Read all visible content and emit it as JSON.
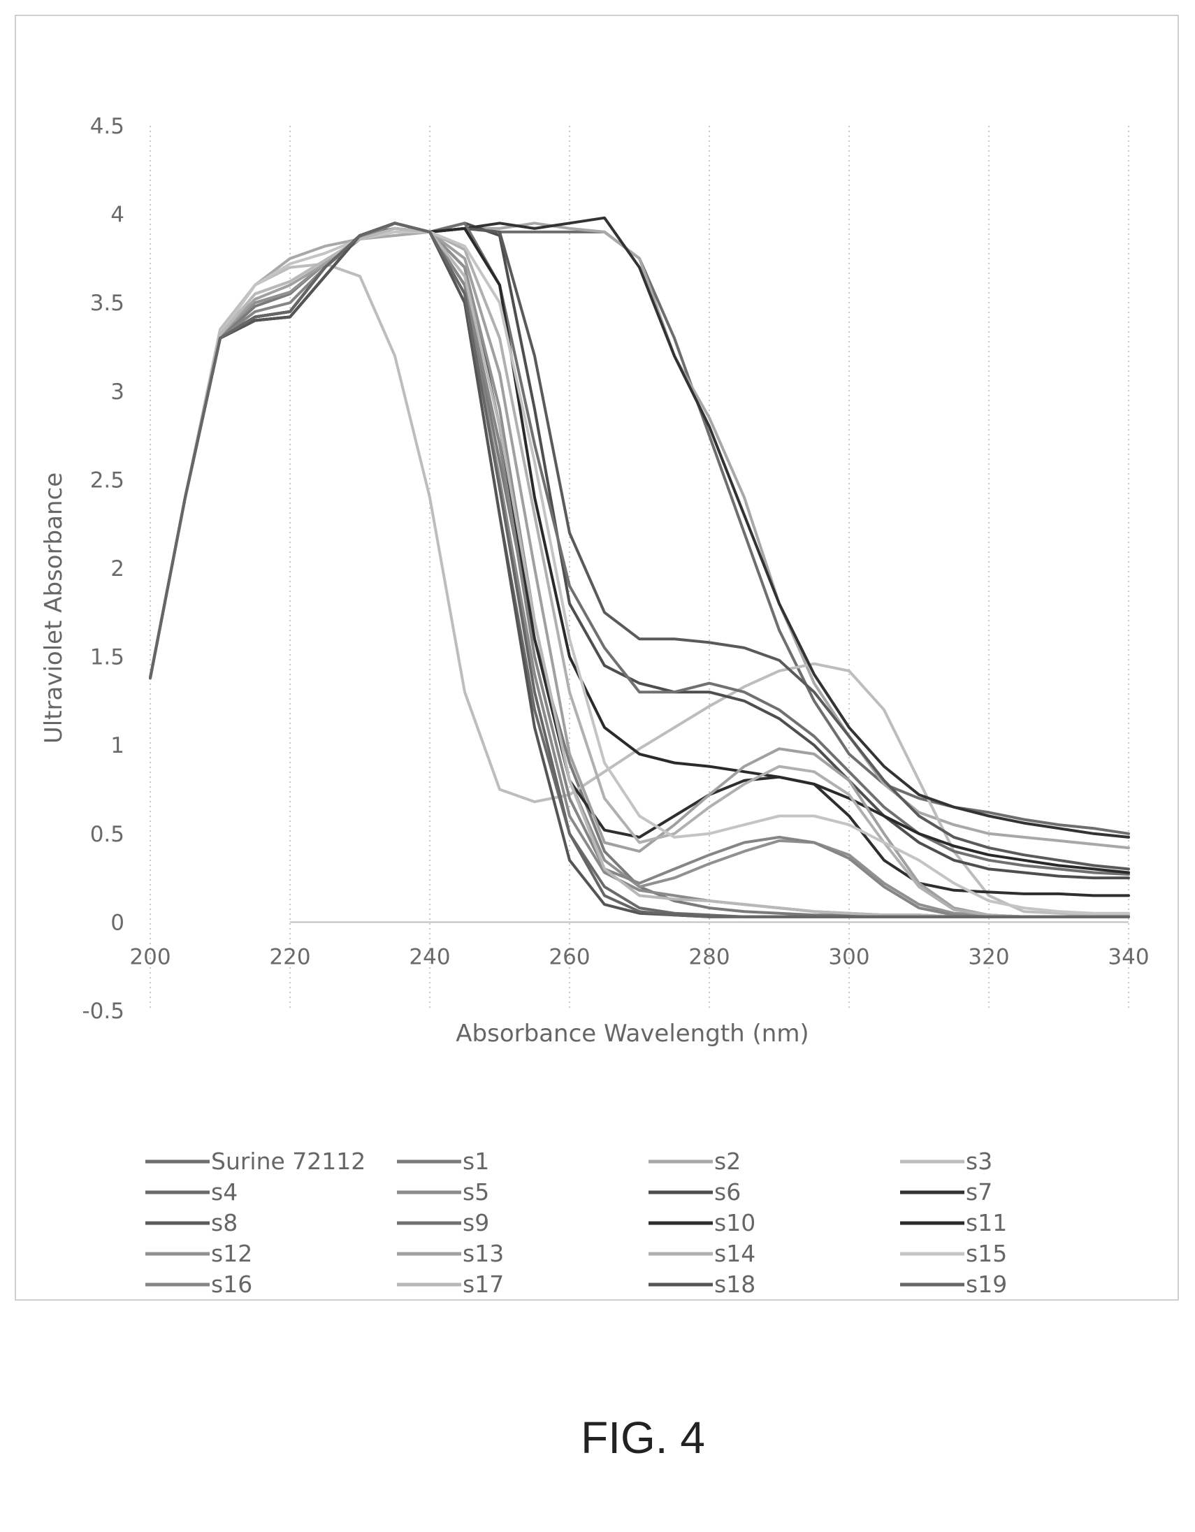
{
  "figure_label": "FIG. 4",
  "chart_data": {
    "type": "line",
    "title": "",
    "xlabel": "Absorbance Wavelength (nm)",
    "ylabel": "Ultraviolet Absorbance",
    "xlim": [
      200,
      340
    ],
    "ylim": [
      -0.5,
      4.5
    ],
    "xticks": [
      "200",
      "220",
      "240",
      "260",
      "280",
      "300",
      "320",
      "340"
    ],
    "yticks": [
      "4.5",
      "4",
      "3.5",
      "3",
      "2.5",
      "2",
      "1.5",
      "1",
      "0.5",
      "0",
      "-0.5"
    ],
    "grid": "vertical-dotted",
    "legend_position": "bottom",
    "x": [
      200,
      205,
      210,
      215,
      220,
      225,
      230,
      235,
      240,
      245,
      250,
      255,
      260,
      265,
      270,
      275,
      280,
      285,
      290,
      295,
      300,
      305,
      310,
      315,
      320,
      325,
      330,
      335,
      340
    ],
    "series": [
      {
        "name": "Surine 72112",
        "color": "#6e6e6e",
        "values": [
          1.38,
          2.4,
          3.3,
          3.42,
          3.45,
          3.7,
          3.88,
          3.92,
          3.9,
          3.92,
          3.9,
          3.9,
          3.9,
          3.9,
          3.75,
          3.3,
          2.75,
          2.2,
          1.65,
          1.25,
          0.95,
          0.78,
          0.7,
          0.65,
          0.62,
          0.58,
          0.55,
          0.53,
          0.5
        ]
      },
      {
        "name": "s1",
        "color": "#7a7a7a",
        "values": [
          1.38,
          2.4,
          3.3,
          3.48,
          3.55,
          3.72,
          3.86,
          3.95,
          3.9,
          3.6,
          2.6,
          1.6,
          0.9,
          0.4,
          0.2,
          0.12,
          0.08,
          0.06,
          0.05,
          0.04,
          0.04,
          0.04,
          0.04,
          0.03,
          0.03,
          0.03,
          0.03,
          0.03,
          0.03
        ]
      },
      {
        "name": "s2",
        "color": "#a8a8a8",
        "values": [
          1.38,
          2.4,
          3.32,
          3.6,
          3.75,
          3.82,
          3.86,
          3.88,
          3.9,
          3.92,
          3.92,
          3.95,
          3.92,
          3.9,
          3.75,
          3.2,
          2.85,
          2.4,
          1.8,
          1.35,
          1.05,
          0.78,
          0.62,
          0.55,
          0.5,
          0.48,
          0.46,
          0.44,
          0.42
        ]
      },
      {
        "name": "s3",
        "color": "#bdbdbd",
        "values": [
          1.38,
          2.4,
          3.35,
          3.6,
          3.7,
          3.72,
          3.65,
          3.2,
          2.4,
          1.3,
          0.75,
          0.68,
          0.72,
          0.85,
          0.98,
          1.1,
          1.22,
          1.33,
          1.42,
          1.46,
          1.42,
          1.2,
          0.8,
          0.4,
          0.15,
          0.06,
          0.05,
          0.04,
          0.04
        ]
      },
      {
        "name": "s4",
        "color": "#6a6a6a",
        "values": [
          1.38,
          2.4,
          3.3,
          3.4,
          3.42,
          3.65,
          3.88,
          3.95,
          3.9,
          3.5,
          2.3,
          1.2,
          0.5,
          0.2,
          0.08,
          0.05,
          0.04,
          0.03,
          0.03,
          0.03,
          0.03,
          0.03,
          0.03,
          0.03,
          0.03,
          0.03,
          0.03,
          0.03,
          0.03
        ]
      },
      {
        "name": "s5",
        "color": "#8a8a8a",
        "values": [
          1.38,
          2.4,
          3.32,
          3.5,
          3.56,
          3.72,
          3.86,
          3.95,
          3.9,
          3.55,
          2.5,
          1.4,
          0.6,
          0.28,
          0.18,
          0.15,
          0.12,
          0.1,
          0.08,
          0.06,
          0.05,
          0.04,
          0.04,
          0.03,
          0.03,
          0.03,
          0.03,
          0.03,
          0.03
        ]
      },
      {
        "name": "s6",
        "color": "#4e4e4e",
        "values": [
          1.38,
          2.4,
          3.3,
          3.4,
          3.42,
          3.65,
          3.88,
          3.95,
          3.9,
          3.95,
          3.88,
          2.9,
          1.8,
          1.45,
          1.35,
          1.3,
          1.3,
          1.25,
          1.15,
          1.0,
          0.8,
          0.6,
          0.45,
          0.35,
          0.3,
          0.28,
          0.26,
          0.25,
          0.25
        ]
      },
      {
        "name": "s7",
        "color": "#333333",
        "values": [
          1.38,
          2.4,
          3.3,
          3.42,
          3.45,
          3.7,
          3.88,
          3.92,
          3.9,
          3.92,
          3.95,
          3.92,
          3.95,
          3.98,
          3.7,
          3.2,
          2.8,
          2.3,
          1.8,
          1.4,
          1.1,
          0.88,
          0.72,
          0.65,
          0.6,
          0.56,
          0.53,
          0.5,
          0.48
        ]
      },
      {
        "name": "s8",
        "color": "#5a5a5a",
        "values": [
          1.38,
          2.4,
          3.3,
          3.42,
          3.45,
          3.7,
          3.88,
          3.92,
          3.9,
          3.92,
          3.9,
          3.2,
          2.2,
          1.75,
          1.6,
          1.6,
          1.58,
          1.55,
          1.48,
          1.3,
          1.05,
          0.8,
          0.6,
          0.48,
          0.42,
          0.38,
          0.35,
          0.32,
          0.3
        ]
      },
      {
        "name": "s9",
        "color": "#707070",
        "values": [
          1.38,
          2.4,
          3.3,
          3.42,
          3.45,
          3.7,
          3.88,
          3.95,
          3.9,
          3.95,
          3.6,
          2.7,
          1.9,
          1.55,
          1.3,
          1.3,
          1.35,
          1.3,
          1.2,
          1.05,
          0.85,
          0.65,
          0.5,
          0.4,
          0.35,
          0.32,
          0.3,
          0.28,
          0.27
        ]
      },
      {
        "name": "s10",
        "color": "#2e2e2e",
        "values": [
          1.38,
          2.4,
          3.3,
          3.4,
          3.42,
          3.65,
          3.88,
          3.95,
          3.9,
          3.7,
          2.8,
          1.6,
          0.8,
          0.52,
          0.48,
          0.6,
          0.72,
          0.8,
          0.82,
          0.78,
          0.6,
          0.35,
          0.22,
          0.18,
          0.17,
          0.16,
          0.16,
          0.15,
          0.15
        ]
      },
      {
        "name": "s11",
        "color": "#2a2a2a",
        "values": [
          1.38,
          2.4,
          3.3,
          3.42,
          3.45,
          3.7,
          3.88,
          3.95,
          3.9,
          3.92,
          3.6,
          2.4,
          1.5,
          1.1,
          0.95,
          0.9,
          0.88,
          0.85,
          0.82,
          0.78,
          0.7,
          0.6,
          0.5,
          0.43,
          0.38,
          0.35,
          0.32,
          0.3,
          0.28
        ]
      },
      {
        "name": "s12",
        "color": "#909090",
        "values": [
          1.38,
          2.4,
          3.32,
          3.5,
          3.56,
          3.72,
          3.86,
          3.95,
          3.9,
          3.7,
          2.9,
          1.7,
          0.8,
          0.35,
          0.2,
          0.25,
          0.33,
          0.4,
          0.46,
          0.45,
          0.38,
          0.22,
          0.1,
          0.05,
          0.04,
          0.03,
          0.03,
          0.03,
          0.03
        ]
      },
      {
        "name": "s13",
        "color": "#a0a0a0",
        "values": [
          1.38,
          2.4,
          3.32,
          3.52,
          3.6,
          3.72,
          3.86,
          3.92,
          3.9,
          3.75,
          3.1,
          2.0,
          0.95,
          0.45,
          0.4,
          0.55,
          0.72,
          0.88,
          0.98,
          0.95,
          0.8,
          0.5,
          0.22,
          0.08,
          0.04,
          0.03,
          0.03,
          0.03,
          0.03
        ]
      },
      {
        "name": "s14",
        "color": "#b0b0b0",
        "values": [
          1.38,
          2.4,
          3.32,
          3.55,
          3.62,
          3.74,
          3.86,
          3.92,
          3.9,
          3.8,
          3.3,
          2.3,
          1.3,
          0.7,
          0.45,
          0.5,
          0.65,
          0.78,
          0.88,
          0.85,
          0.72,
          0.45,
          0.2,
          0.07,
          0.04,
          0.03,
          0.03,
          0.03,
          0.03
        ]
      },
      {
        "name": "s15",
        "color": "#c4c4c4",
        "values": [
          1.38,
          2.4,
          3.32,
          3.6,
          3.72,
          3.78,
          3.86,
          3.9,
          3.9,
          3.82,
          3.5,
          2.6,
          1.6,
          0.9,
          0.6,
          0.48,
          0.5,
          0.55,
          0.6,
          0.6,
          0.55,
          0.45,
          0.35,
          0.22,
          0.12,
          0.08,
          0.06,
          0.05,
          0.05
        ]
      },
      {
        "name": "s16",
        "color": "#858585",
        "values": [
          1.38,
          2.4,
          3.3,
          3.45,
          3.5,
          3.7,
          3.86,
          3.95,
          3.9,
          3.6,
          2.7,
          1.5,
          0.7,
          0.3,
          0.22,
          0.3,
          0.38,
          0.45,
          0.48,
          0.45,
          0.36,
          0.2,
          0.08,
          0.04,
          0.03,
          0.03,
          0.03,
          0.03,
          0.03
        ]
      },
      {
        "name": "s17",
        "color": "#b8b8b8",
        "values": [
          1.38,
          2.4,
          3.32,
          3.55,
          3.62,
          3.74,
          3.86,
          3.92,
          3.9,
          3.65,
          2.8,
          1.7,
          0.8,
          0.3,
          0.15,
          0.13,
          0.12,
          0.1,
          0.08,
          0.06,
          0.05,
          0.04,
          0.04,
          0.03,
          0.03,
          0.03,
          0.03,
          0.03,
          0.03
        ]
      },
      {
        "name": "s18",
        "color": "#555555",
        "values": [
          1.38,
          2.4,
          3.3,
          3.4,
          3.42,
          3.65,
          3.88,
          3.95,
          3.9,
          3.5,
          2.3,
          1.1,
          0.35,
          0.1,
          0.05,
          0.04,
          0.03,
          0.03,
          0.03,
          0.03,
          0.03,
          0.03,
          0.03,
          0.03,
          0.03,
          0.03,
          0.03,
          0.03,
          0.03
        ]
      },
      {
        "name": "s19",
        "color": "#666666",
        "values": [
          1.38,
          2.4,
          3.3,
          3.42,
          3.45,
          3.7,
          3.88,
          3.95,
          3.9,
          3.55,
          2.45,
          1.3,
          0.5,
          0.15,
          0.06,
          0.04,
          0.03,
          0.03,
          0.03,
          0.03,
          0.03,
          0.03,
          0.03,
          0.03,
          0.03,
          0.03,
          0.03,
          0.03,
          0.03
        ]
      }
    ]
  }
}
